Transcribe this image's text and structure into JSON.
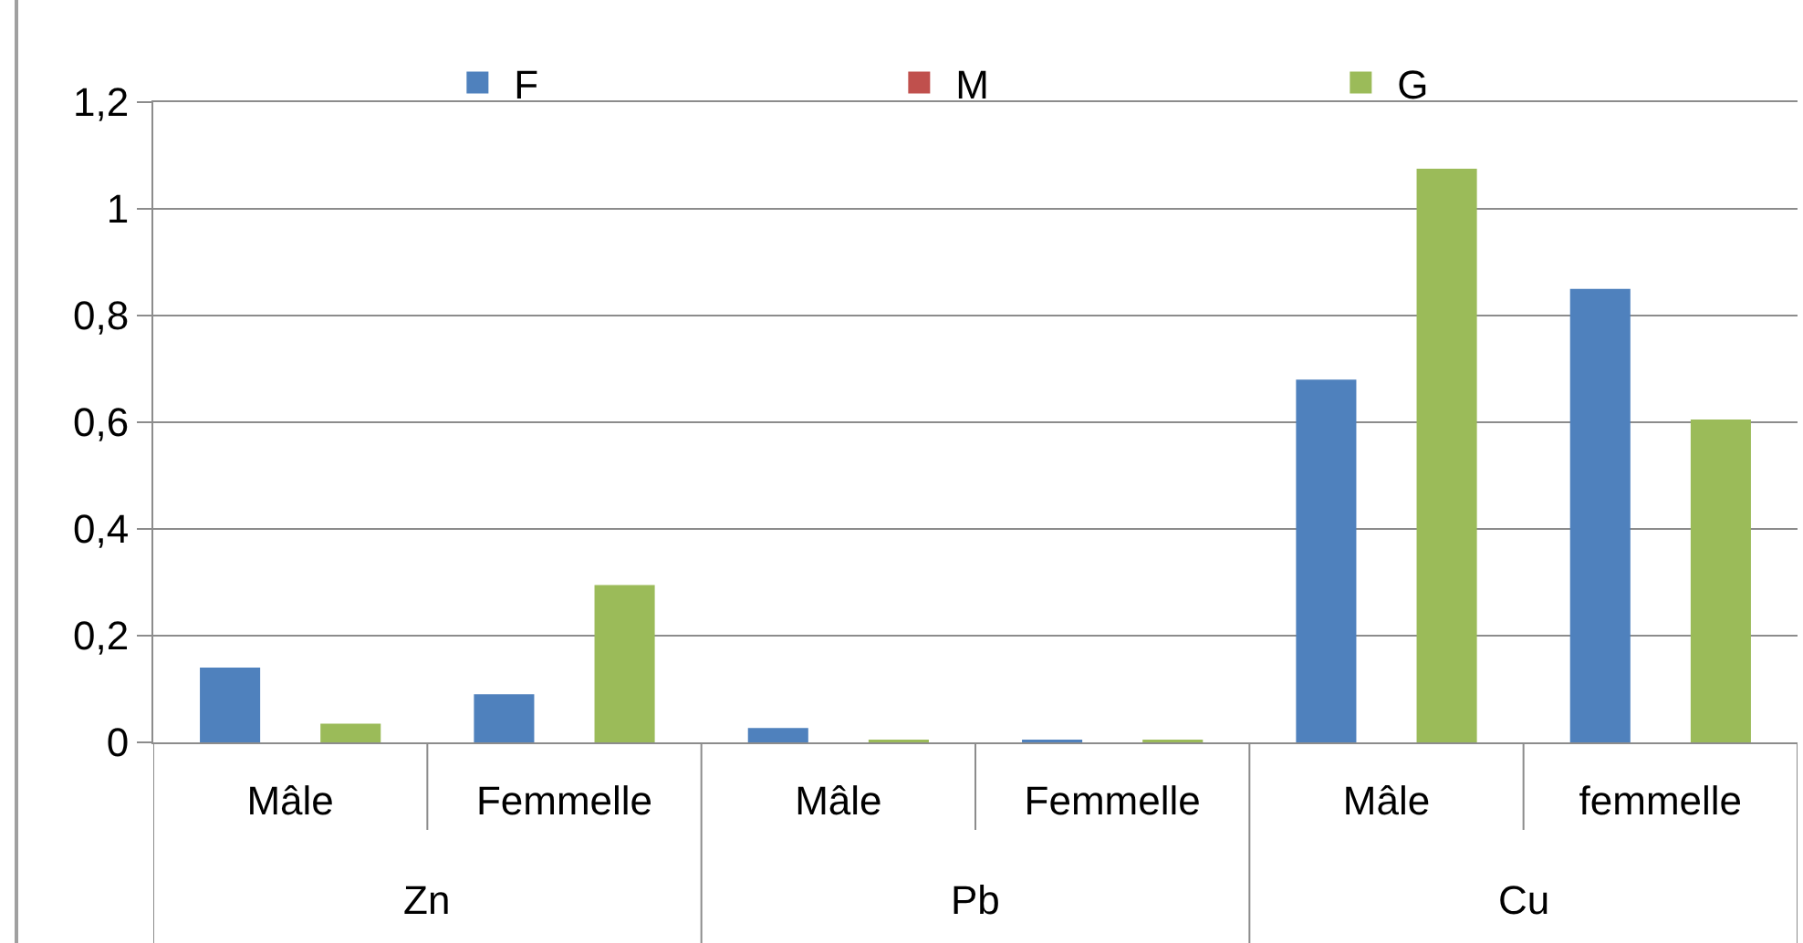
{
  "chart_data": {
    "type": "bar",
    "categories": [
      "Mâle",
      "Femmelle",
      "Mâle",
      "Femmelle",
      "Mâle",
      "femmelle"
    ],
    "annotations": [
      "Zn",
      "Pb",
      "Cu"
    ],
    "series": [
      {
        "name": "F",
        "color": "#4f81bd",
        "values": [
          0.14,
          0.09,
          0.027,
          0.005,
          0.68,
          0.85
        ]
      },
      {
        "name": "M",
        "color": "#c0504d",
        "values": [
          null,
          null,
          null,
          null,
          null,
          null
        ]
      },
      {
        "name": "G",
        "color": "#9bbb59",
        "values": [
          0.035,
          0.295,
          0.005,
          0.005,
          1.075,
          0.605
        ]
      }
    ],
    "ylim": [
      0,
      1.2
    ],
    "yticks": [
      0,
      {
        "value": 0.2,
        "label": "0,2"
      },
      {
        "value": 0.4,
        "label": "0,4"
      },
      {
        "value": 0.6,
        "label": "0,6"
      },
      {
        "value": 0.8,
        "label": "0,8"
      },
      1,
      {
        "value": 1.2,
        "label": "1,2"
      }
    ],
    "grid": "y",
    "legend": "top"
  }
}
